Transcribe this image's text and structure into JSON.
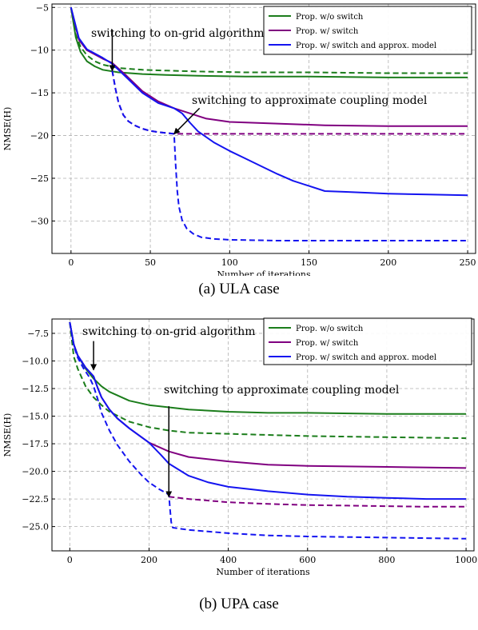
{
  "captions": {
    "a": "(a) ULA case",
    "b": "(b) UPA case"
  },
  "chart_data": [
    {
      "type": "line",
      "xlabel": "Number of iterations",
      "ylabel": "NMSE(H)",
      "xlim": [
        -12,
        255
      ],
      "ylim": [
        -33.8,
        -4.6
      ],
      "xticks": [
        0,
        50,
        100,
        150,
        200,
        250
      ],
      "yticks": [
        -5,
        -10,
        -15,
        -20,
        -25,
        -30
      ],
      "xtick_labels": [
        "0",
        "50",
        "100",
        "150",
        "200",
        "250"
      ],
      "ytick_labels": [
        "−5",
        "−10",
        "−15",
        "−20",
        "−25",
        "−30"
      ],
      "grid": true,
      "legend": {
        "placement": "top-right",
        "entries": [
          "Prop. w/o switch",
          "Prop. w/ switch",
          "Prop. w/ switch and approx. model"
        ]
      },
      "colors": {
        "green": "#1b7d1b",
        "purple": "#800080",
        "blue": "#1414f0"
      },
      "annotations": [
        "switching to on-grid algorithm",
        "switching to approximate coupling model"
      ],
      "arrows": [
        {
          "label_index": 0,
          "tail": [
            26,
            -7.6
          ],
          "head": [
            26,
            -12.4
          ]
        },
        {
          "label_index": 1,
          "tail": [
            81,
            -16.8
          ],
          "head": [
            65,
            -19.8
          ]
        }
      ],
      "series": [
        {
          "name": "Prop. w/o switch",
          "color": "green",
          "dash": "solid",
          "x": [
            0,
            3,
            6,
            10,
            15,
            20,
            30,
            45,
            60,
            80,
            110,
            150,
            200,
            250
          ],
          "y": [
            -5,
            -8.5,
            -10.2,
            -11.3,
            -11.9,
            -12.3,
            -12.6,
            -12.8,
            -12.9,
            -13,
            -13.1,
            -13.1,
            -13.2,
            -13.2
          ]
        },
        {
          "name": "",
          "color": "green",
          "dash": "dashed",
          "x": [
            0,
            3,
            6,
            10,
            15,
            20,
            30,
            45,
            60,
            80,
            110,
            150,
            200,
            250
          ],
          "y": [
            -5,
            -8.2,
            -9.6,
            -10.6,
            -11.3,
            -11.7,
            -12.1,
            -12.3,
            -12.4,
            -12.5,
            -12.6,
            -12.6,
            -12.7,
            -12.7
          ]
        },
        {
          "name": "Prop. w/ switch",
          "color": "purple",
          "dash": "solid",
          "x": [
            0,
            5,
            10,
            20,
            26,
            35,
            45,
            55,
            65,
            75,
            85,
            100,
            130,
            160,
            200,
            250
          ],
          "y": [
            -5,
            -8.8,
            -10,
            -11,
            -11.5,
            -13,
            -14.8,
            -16,
            -16.8,
            -17.4,
            -18,
            -18.4,
            -18.6,
            -18.8,
            -18.9,
            -18.9
          ]
        },
        {
          "name": "",
          "color": "purple",
          "dash": "dashed",
          "x": [
            26,
            28,
            30,
            33,
            36,
            40,
            45,
            50,
            55,
            60,
            65,
            80,
            100,
            150,
            200,
            250
          ],
          "y": [
            -12.4,
            -14.5,
            -16.2,
            -17.6,
            -18.3,
            -18.8,
            -19.2,
            -19.45,
            -19.6,
            -19.7,
            -19.8,
            -19.8,
            -19.8,
            -19.8,
            -19.8,
            -19.8
          ]
        },
        {
          "name": "Prop. w/ switch and approx. model",
          "color": "blue",
          "dash": "solid",
          "x": [
            0,
            5,
            10,
            20,
            26,
            35,
            45,
            55,
            65,
            70,
            75,
            80,
            90,
            100,
            110,
            120,
            130,
            140,
            150,
            160,
            175,
            200,
            225,
            250
          ],
          "y": [
            -5,
            -8.6,
            -9.9,
            -10.9,
            -11.6,
            -13.2,
            -15,
            -16.2,
            -16.8,
            -17.4,
            -18.5,
            -19.5,
            -20.8,
            -21.8,
            -22.7,
            -23.6,
            -24.5,
            -25.3,
            -25.9,
            -26.5,
            -26.6,
            -26.8,
            -26.9,
            -27
          ]
        },
        {
          "name": "",
          "color": "blue",
          "dash": "dashed",
          "x": [
            26,
            28,
            30,
            33,
            36,
            40,
            45,
            50,
            55,
            60,
            65,
            66,
            67,
            68,
            70,
            73,
            77,
            82,
            90,
            100,
            130,
            170,
            210,
            250
          ],
          "y": [
            -12.4,
            -14.5,
            -16.2,
            -17.6,
            -18.3,
            -18.8,
            -19.2,
            -19.45,
            -19.6,
            -19.7,
            -19.8,
            -23.5,
            -26.5,
            -28.3,
            -29.9,
            -30.9,
            -31.5,
            -31.9,
            -32.1,
            -32.2,
            -32.3,
            -32.3,
            -32.3,
            -32.3
          ]
        }
      ]
    },
    {
      "type": "line",
      "xlabel": "Number of iterations",
      "ylabel": "NMSE(H)",
      "xlim": [
        -45,
        1020
      ],
      "ylim": [
        -27.2,
        -6.2
      ],
      "xticks": [
        0,
        200,
        400,
        600,
        800,
        1000
      ],
      "yticks": [
        -7.5,
        -10,
        -12.5,
        -15,
        -17.5,
        -20,
        -22.5,
        -25
      ],
      "xtick_labels": [
        "0",
        "200",
        "400",
        "600",
        "800",
        "1000"
      ],
      "ytick_labels": [
        "−7.5",
        "−10.0",
        "−12.5",
        "−15.0",
        "−17.5",
        "−20.0",
        "−22.5",
        "−25.0"
      ],
      "grid": true,
      "legend": {
        "placement": "top-right",
        "entries": [
          "Prop. w/o switch",
          "Prop. w/ switch",
          "Prop. w/ switch and approx. model"
        ]
      },
      "colors": {
        "green": "#1b7d1b",
        "purple": "#800080",
        "blue": "#1414f0"
      },
      "annotations": [
        "switching to on-grid algorithm",
        "switching to approximate coupling model"
      ],
      "arrows": [
        {
          "label_index": 0,
          "tail": [
            60,
            -8.2
          ],
          "head": [
            60,
            -10.8
          ]
        },
        {
          "label_index": 1,
          "tail": [
            250,
            -14.1
          ],
          "head": [
            250,
            -22.3
          ]
        }
      ],
      "series": [
        {
          "name": "Prop. w/o switch",
          "color": "green",
          "dash": "solid",
          "x": [
            0,
            10,
            20,
            40,
            60,
            80,
            100,
            150,
            200,
            300,
            400,
            500,
            600,
            800,
            1000
          ],
          "y": [
            -6.5,
            -8.5,
            -9.5,
            -10.7,
            -11.6,
            -12.3,
            -12.8,
            -13.6,
            -14,
            -14.4,
            -14.6,
            -14.7,
            -14.7,
            -14.8,
            -14.8
          ]
        },
        {
          "name": "",
          "color": "green",
          "dash": "dashed",
          "x": [
            0,
            10,
            20,
            40,
            60,
            80,
            100,
            150,
            200,
            250,
            300,
            400,
            500,
            600,
            800,
            1000
          ],
          "y": [
            -6.5,
            -9.6,
            -10.7,
            -12.3,
            -13.3,
            -14,
            -14.6,
            -15.5,
            -16,
            -16.3,
            -16.5,
            -16.6,
            -16.7,
            -16.8,
            -16.9,
            -17
          ]
        },
        {
          "name": "Prop. w/ switch",
          "color": "purple",
          "dash": "solid",
          "x": [
            0,
            10,
            20,
            40,
            60,
            70,
            80,
            100,
            120,
            150,
            200,
            250,
            300,
            400,
            500,
            600,
            800,
            1000
          ],
          "y": [
            -6.5,
            -8.5,
            -9.5,
            -10.6,
            -11.4,
            -12.4,
            -13.3,
            -14.4,
            -15.2,
            -16.1,
            -17.4,
            -18.2,
            -18.7,
            -19.1,
            -19.4,
            -19.5,
            -19.6,
            -19.7
          ]
        },
        {
          "name": "",
          "color": "purple",
          "dash": "dashed",
          "x": [
            250,
            300,
            400,
            500,
            600,
            700,
            800,
            900,
            1000
          ],
          "y": [
            -22.3,
            -22.5,
            -22.8,
            -22.95,
            -23.05,
            -23.1,
            -23.15,
            -23.2,
            -23.2
          ]
        },
        {
          "name": "Prop. w/ switch and approx. model",
          "color": "blue",
          "dash": "solid",
          "x": [
            0,
            10,
            20,
            40,
            60,
            70,
            80,
            100,
            120,
            150,
            200,
            230,
            250,
            300,
            350,
            400,
            500,
            600,
            700,
            800,
            900,
            1000
          ],
          "y": [
            -6.5,
            -8.5,
            -9.5,
            -10.6,
            -11.4,
            -12.4,
            -13.3,
            -14.4,
            -15.2,
            -16.1,
            -17.4,
            -18.5,
            -19.3,
            -20.4,
            -21,
            -21.4,
            -21.8,
            -22.1,
            -22.3,
            -22.4,
            -22.5,
            -22.5
          ]
        },
        {
          "name": "",
          "color": "blue",
          "dash": "dashed",
          "x": [
            0,
            5,
            10,
            20,
            35,
            50,
            60,
            70,
            80,
            100,
            120,
            150,
            180,
            200,
            225,
            250,
            253,
            256,
            260,
            300,
            400,
            500,
            600,
            800,
            1000
          ],
          "y": [
            -6.5,
            -7.5,
            -8.6,
            -9.7,
            -10.7,
            -11.5,
            -12.3,
            -13.4,
            -14.7,
            -16.3,
            -17.6,
            -19.1,
            -20.3,
            -21,
            -21.6,
            -22.1,
            -23.4,
            -24.6,
            -25.1,
            -25.3,
            -25.6,
            -25.8,
            -25.9,
            -26,
            -26.1
          ]
        }
      ]
    }
  ]
}
